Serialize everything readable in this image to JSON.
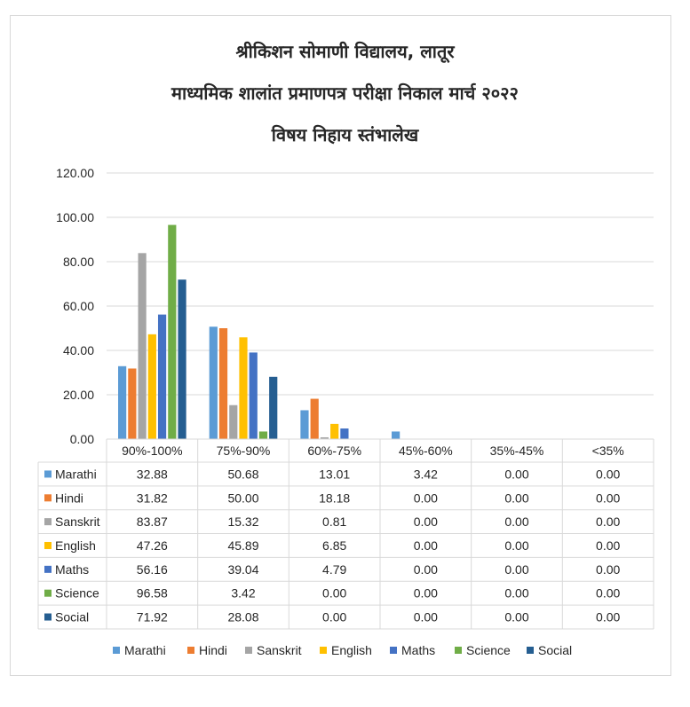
{
  "title": {
    "line1": "श्रीकिशन सोमाणी विद्यालय, लातूर",
    "line2": "माध्यमिक शालांत प्रमाणपत्र परीक्षा निकाल मार्च २०२२",
    "line3": "विषय निहाय स्तंभालेख"
  },
  "chart_data": {
    "type": "bar",
    "categories": [
      "90%-100%",
      "75%-90%",
      "60%-75%",
      "45%-60%",
      "35%-45%",
      "<35%"
    ],
    "ylim": [
      0,
      120
    ],
    "yticks": [
      "0.00",
      "20.00",
      "40.00",
      "60.00",
      "80.00",
      "100.00",
      "120.00"
    ],
    "grid": true,
    "legend_position": "bottom",
    "data_table": true,
    "series": [
      {
        "name": "Marathi",
        "color": "#5b9bd5",
        "values": [
          32.88,
          50.68,
          13.01,
          3.42,
          0.0,
          0.0
        ],
        "labels": [
          "32.88",
          "50.68",
          "13.01",
          "3.42",
          "0.00",
          "0.00"
        ]
      },
      {
        "name": "Hindi",
        "color": "#ed7d31",
        "values": [
          31.82,
          50.0,
          18.18,
          0.0,
          0.0,
          0.0
        ],
        "labels": [
          "31.82",
          "50.00",
          "18.18",
          "0.00",
          "0.00",
          "0.00"
        ]
      },
      {
        "name": "Sanskrit",
        "color": "#a5a5a5",
        "values": [
          83.87,
          15.32,
          0.81,
          0.0,
          0.0,
          0.0
        ],
        "labels": [
          "83.87",
          "15.32",
          "0.81",
          "0.00",
          "0.00",
          "0.00"
        ]
      },
      {
        "name": "English",
        "color": "#ffc000",
        "values": [
          47.26,
          45.89,
          6.85,
          0.0,
          0.0,
          0.0
        ],
        "labels": [
          "47.26",
          "45.89",
          "6.85",
          "0.00",
          "0.00",
          "0.00"
        ]
      },
      {
        "name": "Maths",
        "color": "#4472c4",
        "values": [
          56.16,
          39.04,
          4.79,
          0.0,
          0.0,
          0.0
        ],
        "labels": [
          "56.16",
          "39.04",
          "4.79",
          "0.00",
          "0.00",
          "0.00"
        ]
      },
      {
        "name": "Science",
        "color": "#70ad47",
        "values": [
          96.58,
          3.42,
          0.0,
          0.0,
          0.0,
          0.0
        ],
        "labels": [
          "96.58",
          "3.42",
          "0.00",
          "0.00",
          "0.00",
          "0.00"
        ]
      },
      {
        "name": "Social",
        "color": "#255e91",
        "values": [
          71.92,
          28.08,
          0.0,
          0.0,
          0.0,
          0.0
        ],
        "labels": [
          "71.92",
          "28.08",
          "0.00",
          "0.00",
          "0.00",
          "0.00"
        ]
      }
    ]
  }
}
